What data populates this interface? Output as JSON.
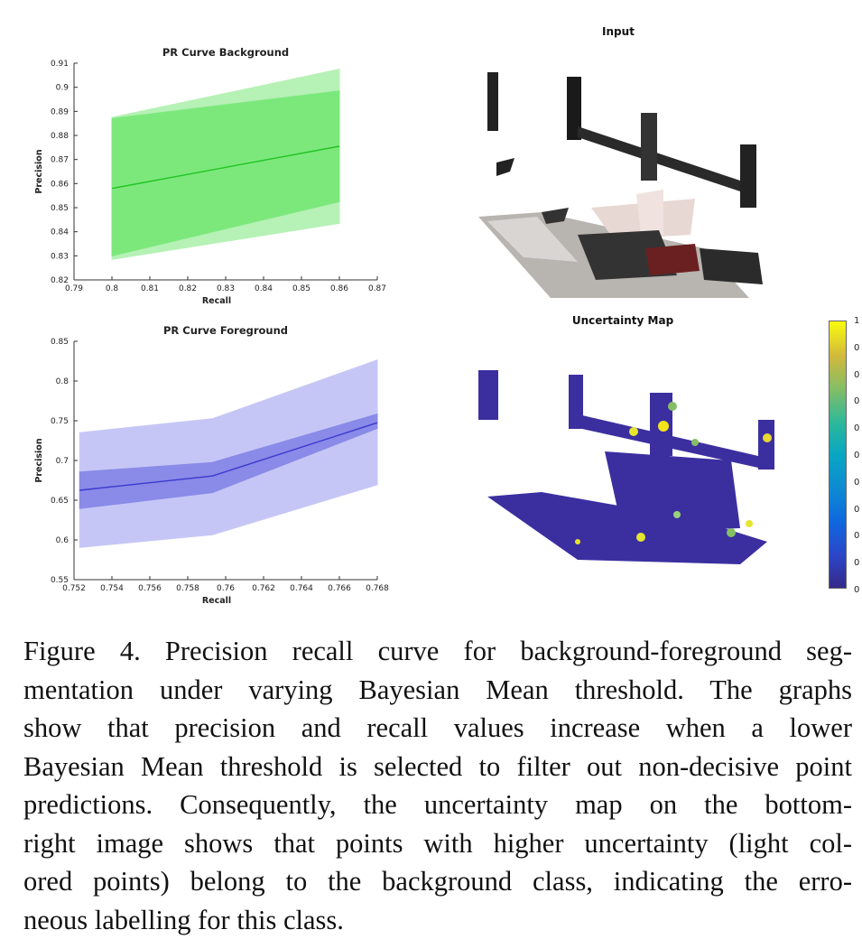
{
  "chart_data": [
    {
      "type": "area",
      "title": "PR Curve Background",
      "xlabel": "Recall",
      "ylabel": "Precision",
      "xlim": [
        0.79,
        0.87
      ],
      "ylim": [
        0.82,
        0.91
      ],
      "xticks": [
        "0.79",
        "0.8",
        "0.81",
        "0.82",
        "0.83",
        "0.84",
        "0.85",
        "0.86",
        "0.87"
      ],
      "yticks": [
        "0.82",
        "0.83",
        "0.84",
        "0.85",
        "0.86",
        "0.87",
        "0.88",
        "0.89",
        "0.9",
        "0.91"
      ],
      "x": [
        0.8,
        0.86
      ],
      "mean": [
        0.858,
        0.8755
      ],
      "outer_upper": [
        0.8875,
        0.9075
      ],
      "outer_lower": [
        0.8285,
        0.8435
      ],
      "inner_upper": [
        0.887,
        0.8985
      ],
      "inner_lower": [
        0.83,
        0.8525
      ],
      "colors": {
        "line": "#22c422",
        "inner": "#7ce87c",
        "outer": "#b6f1b6"
      }
    },
    {
      "type": "area",
      "title": "PR Curve Foreground",
      "xlabel": "Recall",
      "ylabel": "Precision",
      "xlim": [
        0.752,
        0.768
      ],
      "ylim": [
        0.55,
        0.85
      ],
      "xticks": [
        "0.752",
        "0.754",
        "0.756",
        "0.758",
        "0.76",
        "0.762",
        "0.764",
        "0.766",
        "0.768"
      ],
      "yticks": [
        "0.55",
        "0.6",
        "0.65",
        "0.7",
        "0.75",
        "0.8",
        "0.85"
      ],
      "x": [
        0.7523,
        0.7593,
        0.768
      ],
      "mean": [
        0.6625,
        0.6805,
        0.7475
      ],
      "outer_upper": [
        0.735,
        0.7525,
        0.8265
      ],
      "outer_lower": [
        0.5905,
        0.6065,
        0.6695
      ],
      "inner_upper": [
        0.6855,
        0.6975,
        0.7585
      ],
      "inner_lower": [
        0.6395,
        0.6595,
        0.7405
      ],
      "colors": {
        "line": "#3a3acf",
        "inner": "#8a8ae8",
        "outer": "#c6c6f6"
      }
    }
  ],
  "panels": {
    "input_title": "Input",
    "uncertainty_title": "Uncertainty Map"
  },
  "colorbar": {
    "labels": [
      "1",
      "0",
      "0",
      "0",
      "0",
      "0",
      "0",
      "0",
      "0",
      "0",
      "0"
    ]
  },
  "caption": {
    "lines": [
      "Figure 4. Precision recall curve for background-foreground seg-",
      "mentation under varying Bayesian Mean threshold.  The graphs",
      "show that precision and recall values increase when a lower",
      "Bayesian Mean threshold is selected to filter out non-decisive point",
      "predictions.  Consequently, the uncertainty map on the bottom-",
      "right image shows that points with higher uncertainty (light col-",
      "ored points) belong to the background class, indicating the erro-",
      "neous labelling for this class."
    ]
  }
}
